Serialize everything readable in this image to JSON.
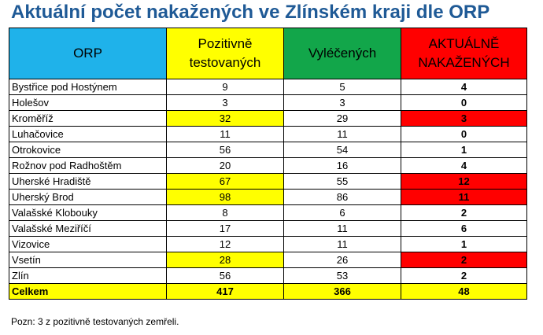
{
  "title": "Aktuální počet nakažených ve Zlínském kraji dle ORP",
  "columns": {
    "orp": "ORP",
    "positive_l1": "Pozitivně",
    "positive_l2": "testovaných",
    "recovered": "Vyléčených",
    "active_l1": "AKTUÁLNĚ",
    "active_l2": "NAKAŽENÝCH"
  },
  "colors": {
    "orp_header": "#1fb2ea",
    "positive_header": "#ffff00",
    "recovered_header": "#12a64a",
    "active_header": "#ff0000",
    "title": "#1f5a96"
  },
  "rows": [
    {
      "name": "Bystřice pod Hostýnem",
      "positive": "9",
      "recovered": "5",
      "active": "4",
      "highlight": false
    },
    {
      "name": "Holešov",
      "positive": "3",
      "recovered": "3",
      "active": "0",
      "highlight": false
    },
    {
      "name": "Kroměříž",
      "positive": "32",
      "recovered": "29",
      "active": "3",
      "highlight": true
    },
    {
      "name": "Luhačovice",
      "positive": "11",
      "recovered": "11",
      "active": "0",
      "highlight": false
    },
    {
      "name": "Otrokovice",
      "positive": "56",
      "recovered": "54",
      "active": "1",
      "highlight": false
    },
    {
      "name": "Rožnov pod Radhoštěm",
      "positive": "20",
      "recovered": "16",
      "active": "4",
      "highlight": false
    },
    {
      "name": "Uherské Hradiště",
      "positive": "67",
      "recovered": "55",
      "active": "12",
      "highlight": true
    },
    {
      "name": "Uherský Brod",
      "positive": "98",
      "recovered": "86",
      "active": "11",
      "highlight": true
    },
    {
      "name": "Valašské Klobouky",
      "positive": "8",
      "recovered": "6",
      "active": "2",
      "highlight": false
    },
    {
      "name": "Valašské Meziříčí",
      "positive": "17",
      "recovered": "11",
      "active": "6",
      "highlight": false
    },
    {
      "name": "Vizovice",
      "positive": "12",
      "recovered": "11",
      "active": "1",
      "highlight": false
    },
    {
      "name": "Vsetín",
      "positive": "28",
      "recovered": "26",
      "active": "2",
      "highlight": true
    },
    {
      "name": "Zlín",
      "positive": "56",
      "recovered": "53",
      "active": "2",
      "highlight": false
    }
  ],
  "total": {
    "name": "Celkem",
    "positive": "417",
    "recovered": "366",
    "active": "48"
  },
  "note": "Pozn: 3 z pozitivně testovaných zemřeli."
}
